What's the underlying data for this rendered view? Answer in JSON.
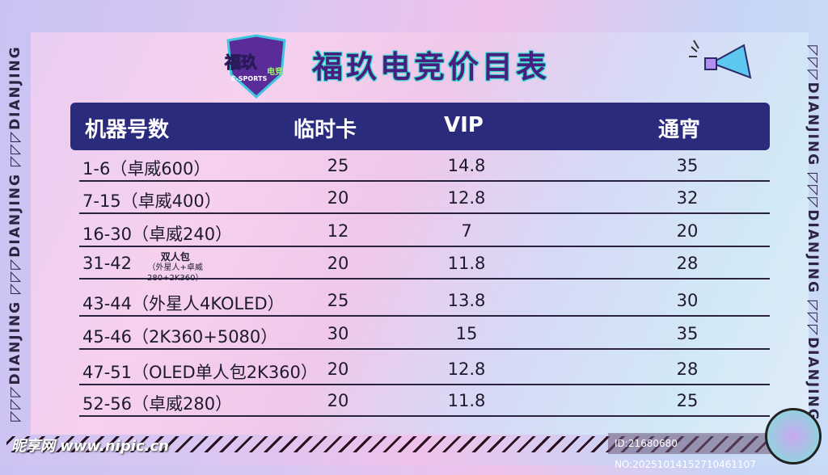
{
  "side_text": "◸◸◸DIANJING ◸◸◸DIANJING ◸◸◸DIANJING",
  "logo": {
    "text": "福玖",
    "sub": "E-SPORTS",
    "badge": "电竞"
  },
  "title": "福玖电竞价目表",
  "headers": [
    "机器号数",
    "临时卡",
    "VIP",
    "通宵"
  ],
  "rows": [
    {
      "machine": "1-6（卓威600）",
      "temp": "25",
      "vip": "14.8",
      "night": "35"
    },
    {
      "machine": "7-15（卓威400）",
      "temp": "20",
      "vip": "12.8",
      "night": "32"
    },
    {
      "machine": "16-30（卓威240）",
      "temp": "12",
      "vip": "7",
      "night": "20"
    },
    {
      "machine": "31-42",
      "note_title": "双人包",
      "note": "（外星人+卓威280+2K360）",
      "temp": "20",
      "vip": "11.8",
      "night": "28"
    },
    {
      "machine": "43-44（外星人4KOLED）",
      "temp": "25",
      "vip": "13.8",
      "night": "30"
    },
    {
      "machine": "45-46（2K360+5080）",
      "temp": "30",
      "vip": "15",
      "night": "35"
    },
    {
      "machine": "47-51（OLED单人包2K360）",
      "temp": "20",
      "vip": "12.8",
      "night": "28"
    },
    {
      "machine": "52-56（卓威280）",
      "temp": "20",
      "vip": "11.8",
      "night": "25"
    }
  ],
  "watermark": "昵享网 www.nipic.cn",
  "id_text": "ID:21680680 NO:20251014152710461107",
  "colors": {
    "header_bg": "#2b2b7e",
    "title": "#4a1e7e",
    "title_outline": "#35e0d0"
  }
}
